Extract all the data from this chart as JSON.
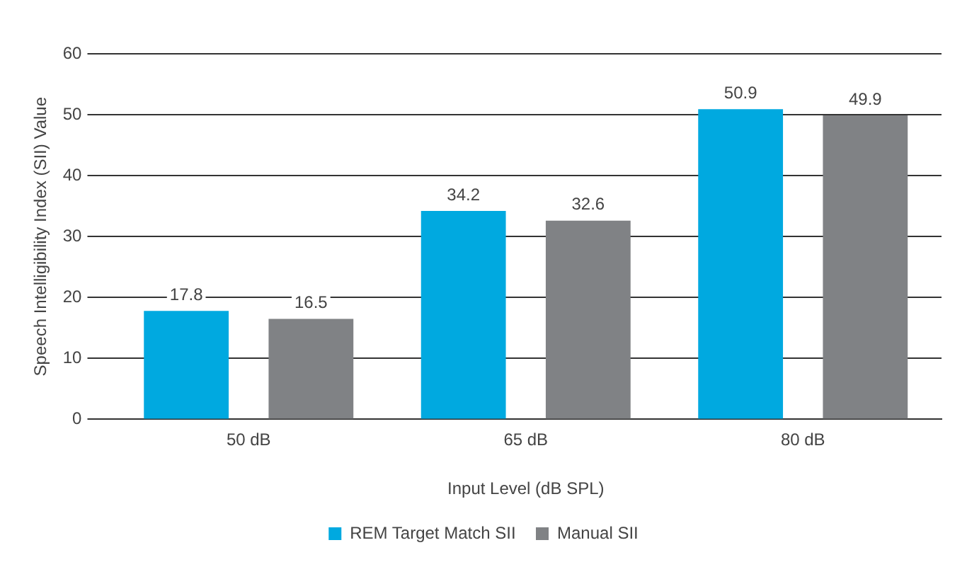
{
  "chart_data": {
    "type": "bar",
    "xlabel": "Input Level (dB SPL)",
    "ylabel": "Speech Intelligibility Index (SII) Value",
    "categories": [
      "50 dB",
      "65 dB",
      "80 dB"
    ],
    "series": [
      {
        "name": "REM Target Match SII",
        "color": "#00a9e0",
        "values": [
          17.8,
          34.2,
          50.9
        ]
      },
      {
        "name": "Manual SII",
        "color": "#808285",
        "values": [
          16.5,
          32.6,
          49.9
        ]
      }
    ],
    "ylim": [
      0,
      60
    ],
    "yticks": [
      0,
      10,
      20,
      30,
      40,
      50,
      60
    ],
    "grid": "y",
    "legend": "bottom",
    "data_labels": true
  }
}
